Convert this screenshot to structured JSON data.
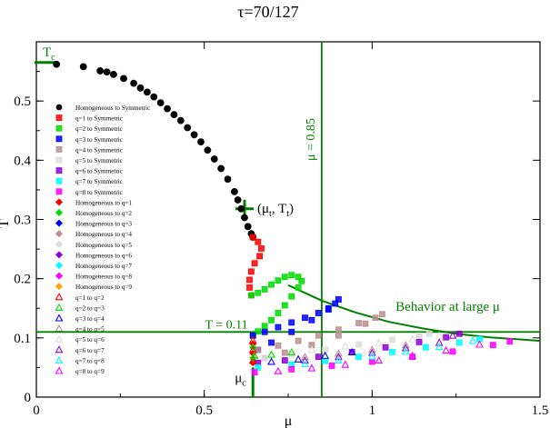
{
  "chart_data": {
    "type": "scatter",
    "title": "τ=70/127",
    "xlabel": "μ",
    "ylabel": "T",
    "xlim": [
      0,
      1.5
    ],
    "ylim": [
      0,
      0.6
    ],
    "x_ticks": [
      0,
      0.5,
      1,
      1.5
    ],
    "x_tick_labels": [
      "0",
      "0.5",
      "1",
      "1.5"
    ],
    "y_ticks": [
      0,
      0.1,
      0.2,
      0.3,
      0.4,
      0.5
    ],
    "y_tick_labels": [
      "0",
      "0.1",
      "0.2",
      "0.3",
      "0.4",
      "0.5"
    ],
    "grid": false,
    "legend_position": "left",
    "legend": [
      {
        "label": "Homogeneous to Symmetric",
        "marker": "circle",
        "color": "#000000",
        "filled": true
      },
      {
        "label": "q=1 to Symmetric",
        "marker": "square",
        "color": "#ff0000",
        "filled": true
      },
      {
        "label": "q=2 to Symmetric",
        "marker": "square",
        "color": "#00dd00",
        "filled": true
      },
      {
        "label": "q=3 to Symmetric",
        "marker": "square",
        "color": "#0000ff",
        "filled": true
      },
      {
        "label": "q=4 to Symmetric",
        "marker": "square",
        "color": "#bc8f8f",
        "filled": true
      },
      {
        "label": "q=5 to Symmetric",
        "marker": "square",
        "color": "#dcdcdc",
        "filled": true
      },
      {
        "label": "q=6 to Symmetric",
        "marker": "square",
        "color": "#9400d3",
        "filled": true
      },
      {
        "label": "q=7 to Symmetric",
        "marker": "square",
        "color": "#00ffff",
        "filled": true
      },
      {
        "label": "q=8 to Symmetric",
        "marker": "square",
        "color": "#ff00ff",
        "filled": true
      },
      {
        "label": "Homogeneous to q=1",
        "marker": "diamond",
        "color": "#ff0000",
        "filled": true
      },
      {
        "label": "Homogeneous to q=2",
        "marker": "diamond",
        "color": "#00dd00",
        "filled": true
      },
      {
        "label": "Homogeneous to q=3",
        "marker": "diamond",
        "color": "#0000ff",
        "filled": true
      },
      {
        "label": "Homogeneous to q=4",
        "marker": "diamond",
        "color": "#bc8f8f",
        "filled": true
      },
      {
        "label": "Homogeneous to q=5",
        "marker": "diamond",
        "color": "#dcdcdc",
        "filled": true
      },
      {
        "label": "Homogeneous to q=6",
        "marker": "diamond",
        "color": "#9400d3",
        "filled": true
      },
      {
        "label": "Homogeneous to q=7",
        "marker": "diamond",
        "color": "#00ffff",
        "filled": true
      },
      {
        "label": "Homogeneous to q=8",
        "marker": "diamond",
        "color": "#ff00ff",
        "filled": true
      },
      {
        "label": "Homogeneous to q=9",
        "marker": "diamond",
        "color": "#ffa500",
        "filled": true
      },
      {
        "label": "q=1 to q=2",
        "marker": "triangle",
        "color": "#ff0000",
        "filled": true
      },
      {
        "label": "q=2 to q=3",
        "marker": "triangle",
        "color": "#00dd00",
        "filled": true
      },
      {
        "label": "q=3 to q=4",
        "marker": "triangle",
        "color": "#0000ff",
        "filled": true
      },
      {
        "label": "q=4 to q=5",
        "marker": "triangle",
        "color": "#bc8f8f",
        "filled": true
      },
      {
        "label": "q=5 to q=6",
        "marker": "triangle",
        "color": "#dcdcdc",
        "filled": true
      },
      {
        "label": "q=6 to q=7",
        "marker": "triangle",
        "color": "#9400d3",
        "filled": true
      },
      {
        "label": "q=7 to q=8",
        "marker": "triangle",
        "color": "#00ffff",
        "filled": true
      },
      {
        "label": "q=8 to q=9",
        "marker": "triangle",
        "color": "#ff00ff",
        "filled": true
      }
    ],
    "series": [
      {
        "legend_index": 0,
        "points": [
          [
            0.06,
            0.562
          ],
          [
            0.14,
            0.558
          ],
          [
            0.19,
            0.551
          ],
          [
            0.21,
            0.549
          ],
          [
            0.23,
            0.545
          ],
          [
            0.26,
            0.538
          ],
          [
            0.29,
            0.53
          ],
          [
            0.31,
            0.522
          ],
          [
            0.33,
            0.515
          ],
          [
            0.35,
            0.507
          ],
          [
            0.37,
            0.497
          ],
          [
            0.39,
            0.487
          ],
          [
            0.41,
            0.477
          ],
          [
            0.43,
            0.467
          ],
          [
            0.45,
            0.455
          ],
          [
            0.47,
            0.443
          ],
          [
            0.49,
            0.431
          ],
          [
            0.51,
            0.417
          ],
          [
            0.53,
            0.402
          ],
          [
            0.55,
            0.386
          ],
          [
            0.57,
            0.368
          ],
          [
            0.59,
            0.347
          ],
          [
            0.6,
            0.333
          ],
          [
            0.61,
            0.318
          ],
          [
            0.62,
            0.303
          ],
          [
            0.63,
            0.288
          ],
          [
            0.64,
            0.276
          ],
          [
            0.645,
            0.27
          ]
        ]
      },
      {
        "legend_index": 1,
        "points": [
          [
            0.645,
            0.27
          ],
          [
            0.66,
            0.262
          ],
          [
            0.67,
            0.251
          ],
          [
            0.665,
            0.238
          ],
          [
            0.65,
            0.226
          ],
          [
            0.64,
            0.212
          ],
          [
            0.635,
            0.198
          ],
          [
            0.635,
            0.185
          ],
          [
            0.64,
            0.172
          ]
        ]
      },
      {
        "legend_index": 2,
        "points": [
          [
            0.64,
            0.172
          ],
          [
            0.66,
            0.176
          ],
          [
            0.68,
            0.182
          ],
          [
            0.7,
            0.19
          ],
          [
            0.72,
            0.197
          ],
          [
            0.74,
            0.203
          ],
          [
            0.76,
            0.206
          ],
          [
            0.78,
            0.203
          ],
          [
            0.79,
            0.196
          ],
          [
            0.78,
            0.185
          ],
          [
            0.76,
            0.17
          ],
          [
            0.74,
            0.155
          ],
          [
            0.72,
            0.142
          ],
          [
            0.7,
            0.13
          ],
          [
            0.68,
            0.12
          ],
          [
            0.66,
            0.111
          ],
          [
            0.645,
            0.104
          ]
        ]
      },
      {
        "legend_index": 3,
        "points": [
          [
            0.645,
            0.104
          ],
          [
            0.68,
            0.11
          ],
          [
            0.72,
            0.118
          ],
          [
            0.76,
            0.126
          ],
          [
            0.8,
            0.134
          ],
          [
            0.84,
            0.142
          ],
          [
            0.87,
            0.15
          ],
          [
            0.89,
            0.158
          ],
          [
            0.9,
            0.165
          ],
          [
            0.87,
            0.148
          ],
          [
            0.82,
            0.13
          ],
          [
            0.76,
            0.11
          ],
          [
            0.7,
            0.092
          ],
          [
            0.66,
            0.08
          ]
        ]
      },
      {
        "legend_index": 4,
        "points": [
          [
            0.66,
            0.08
          ],
          [
            0.72,
            0.087
          ],
          [
            0.78,
            0.095
          ],
          [
            0.84,
            0.104
          ],
          [
            0.9,
            0.114
          ],
          [
            0.96,
            0.125
          ],
          [
            1.01,
            0.134
          ],
          [
            1.03,
            0.14
          ],
          [
            0.98,
            0.124
          ],
          [
            0.9,
            0.104
          ],
          [
            0.82,
            0.088
          ],
          [
            0.74,
            0.075
          ],
          [
            0.68,
            0.066
          ]
        ]
      },
      {
        "legend_index": 5,
        "points": [
          [
            0.68,
            0.066
          ],
          [
            0.76,
            0.072
          ],
          [
            0.86,
            0.08
          ],
          [
            0.96,
            0.089
          ],
          [
            1.06,
            0.097
          ],
          [
            1.14,
            0.104
          ],
          [
            1.17,
            0.107
          ]
        ]
      },
      {
        "legend_index": 6,
        "points": [
          [
            0.66,
            0.058
          ],
          [
            0.74,
            0.062
          ],
          [
            0.84,
            0.068
          ],
          [
            0.94,
            0.076
          ],
          [
            1.04,
            0.084
          ],
          [
            1.14,
            0.093
          ],
          [
            1.22,
            0.101
          ],
          [
            1.26,
            0.107
          ]
        ]
      },
      {
        "legend_index": 7,
        "points": [
          [
            0.66,
            0.05
          ],
          [
            0.76,
            0.055
          ],
          [
            0.86,
            0.061
          ],
          [
            0.96,
            0.068
          ],
          [
            1.06,
            0.076
          ],
          [
            1.16,
            0.084
          ],
          [
            1.26,
            0.092
          ],
          [
            1.32,
            0.098
          ]
        ]
      },
      {
        "legend_index": 8,
        "points": [
          [
            0.65,
            0.042
          ],
          [
            0.76,
            0.047
          ],
          [
            0.88,
            0.053
          ],
          [
            1.0,
            0.06
          ],
          [
            1.12,
            0.068
          ],
          [
            1.24,
            0.077
          ],
          [
            1.36,
            0.088
          ],
          [
            1.41,
            0.094
          ]
        ]
      },
      {
        "legend_index": 9,
        "points": [
          [
            0.645,
            0.09
          ],
          [
            0.645,
            0.074
          ],
          [
            0.645,
            0.058
          ]
        ]
      },
      {
        "legend_index": 10,
        "points": [
          [
            0.645,
            0.084
          ],
          [
            0.645,
            0.066
          ]
        ]
      },
      {
        "legend_index": 18,
        "points": [
          [
            0.645,
            0.096
          ],
          [
            0.645,
            0.08
          ],
          [
            0.645,
            0.062
          ]
        ]
      },
      {
        "legend_index": 19,
        "points": [
          [
            0.65,
            0.07
          ],
          [
            0.7,
            0.072
          ],
          [
            0.76,
            0.076
          ]
        ]
      },
      {
        "legend_index": 20,
        "points": [
          [
            0.7,
            0.06
          ],
          [
            0.78,
            0.064
          ],
          [
            0.86,
            0.07
          ],
          [
            0.94,
            0.076
          ]
        ]
      },
      {
        "legend_index": 21,
        "points": [
          [
            0.8,
            0.068
          ],
          [
            0.9,
            0.074
          ],
          [
            1.0,
            0.08
          ],
          [
            1.1,
            0.088
          ]
        ]
      },
      {
        "legend_index": 22,
        "points": [
          [
            0.82,
            0.08
          ],
          [
            0.92,
            0.086
          ],
          [
            1.02,
            0.092
          ],
          [
            1.12,
            0.098
          ],
          [
            1.2,
            0.104
          ]
        ]
      },
      {
        "legend_index": 23,
        "points": [
          [
            0.8,
            0.062
          ],
          [
            0.9,
            0.068
          ],
          [
            1.0,
            0.075
          ],
          [
            1.1,
            0.083
          ],
          [
            1.2,
            0.092
          ],
          [
            1.24,
            0.104
          ]
        ]
      },
      {
        "legend_index": 24,
        "points": [
          [
            0.8,
            0.056
          ],
          [
            0.9,
            0.062
          ],
          [
            1.0,
            0.069
          ],
          [
            1.1,
            0.077
          ],
          [
            1.2,
            0.085
          ],
          [
            1.3,
            0.095
          ]
        ]
      },
      {
        "legend_index": 25,
        "points": [
          [
            0.72,
            0.044
          ],
          [
            0.82,
            0.049
          ],
          [
            0.92,
            0.055
          ],
          [
            1.02,
            0.062
          ],
          [
            1.12,
            0.07
          ],
          [
            1.22,
            0.079
          ],
          [
            1.32,
            0.089
          ]
        ]
      }
    ],
    "lines": [
      {
        "type": "vertical",
        "x": 0.85,
        "label": "μ = 0.85",
        "color": "#008000"
      },
      {
        "type": "horizontal",
        "y": 0.11,
        "label": "T = 0.11",
        "color": "#008000"
      },
      {
        "type": "curve",
        "label": "Behavior at large μ",
        "color": "#008000",
        "points": [
          [
            0.75,
            0.189
          ],
          [
            0.85,
            0.163
          ],
          [
            0.95,
            0.143
          ],
          [
            1.05,
            0.127
          ],
          [
            1.15,
            0.116
          ],
          [
            1.25,
            0.107
          ],
          [
            1.35,
            0.101
          ],
          [
            1.45,
            0.097
          ],
          [
            1.5,
            0.095
          ]
        ]
      }
    ],
    "annotations": [
      {
        "text": "(μ",
        "sub": "t",
        "mid": ", T",
        "sub2": "t",
        "end": ")",
        "x": 0.62,
        "y": 0.318
      },
      {
        "text": "T",
        "sub": "c",
        "x": 0.0,
        "y": 0.565
      },
      {
        "text": "μ",
        "sub": "c",
        "x": 0.645,
        "y": 0.0
      }
    ],
    "critical_marks": {
      "Tc": 0.565,
      "mu_c": 0.645,
      "mu_t": 0.62,
      "T_t": 0.318
    },
    "series_colors": {
      "line_accent": "#008000"
    }
  }
}
